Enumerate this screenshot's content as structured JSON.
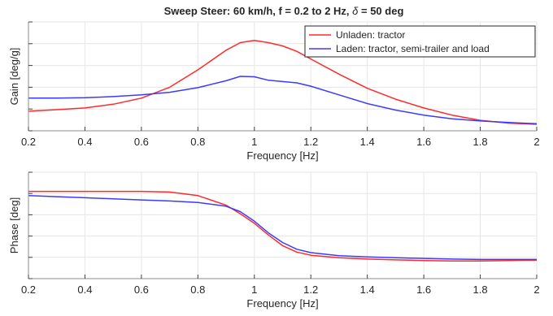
{
  "figure": {
    "title": "Sweep Steer: 60 km/h, f = 0.2 to 2 Hz, ",
    "title_delta": "δ",
    "title_tail": " = 50 deg"
  },
  "chart_data": [
    {
      "type": "line",
      "title": "Sweep Steer: 60 km/h, f = 0.2 to 2 Hz, δ = 50 deg",
      "xlabel": "Frequency [Hz]",
      "ylabel": "Gain [deg/g]",
      "xlim": [
        0.2,
        2
      ],
      "ylim": [
        0,
        5
      ],
      "xticks": [
        0.2,
        0.4,
        0.6,
        0.8,
        1,
        1.2,
        1.4,
        1.6,
        1.8,
        2
      ],
      "xtick_labels": [
        "0.2",
        "0.4",
        "0.6",
        "0.8",
        "1",
        "1.2",
        "1.4",
        "1.6",
        "1.8",
        "2"
      ],
      "grid": true,
      "legend": "top-right",
      "series": [
        {
          "name": "Unladen: tractor",
          "color": "#ff2a2a",
          "x": [
            0.2,
            0.3,
            0.4,
            0.5,
            0.6,
            0.7,
            0.8,
            0.9,
            0.95,
            1.0,
            1.05,
            1.1,
            1.15,
            1.2,
            1.3,
            1.4,
            1.5,
            1.6,
            1.7,
            1.8,
            1.9,
            2.0
          ],
          "y": [
            0.9,
            0.97,
            1.05,
            1.22,
            1.5,
            2.0,
            2.8,
            3.7,
            4.05,
            4.15,
            4.05,
            3.9,
            3.65,
            3.3,
            2.6,
            1.95,
            1.45,
            1.05,
            0.72,
            0.48,
            0.35,
            0.3
          ]
        },
        {
          "name": "Laden: tractor, semi-trailer and load",
          "color": "#3b3bff",
          "x": [
            0.2,
            0.3,
            0.4,
            0.5,
            0.6,
            0.7,
            0.8,
            0.9,
            0.95,
            1.0,
            1.05,
            1.1,
            1.15,
            1.2,
            1.3,
            1.4,
            1.5,
            1.6,
            1.7,
            1.8,
            1.9,
            2.0
          ],
          "y": [
            1.5,
            1.5,
            1.52,
            1.57,
            1.65,
            1.77,
            1.98,
            2.3,
            2.5,
            2.48,
            2.32,
            2.26,
            2.2,
            2.05,
            1.65,
            1.25,
            0.95,
            0.72,
            0.55,
            0.45,
            0.38,
            0.33
          ]
        }
      ]
    },
    {
      "type": "line",
      "xlabel": "Frequency [Hz]",
      "ylabel": "Phase [deg]",
      "xlim": [
        0.2,
        2
      ],
      "ylim": [
        -5,
        0
      ],
      "xticks": [
        0.2,
        0.4,
        0.6,
        0.8,
        1,
        1.2,
        1.4,
        1.6,
        1.8,
        2
      ],
      "xtick_labels": [
        "0.2",
        "0.4",
        "0.6",
        "0.8",
        "1",
        "1.2",
        "1.4",
        "1.6",
        "1.8",
        "2"
      ],
      "grid": true,
      "series": [
        {
          "color": "#ff2a2a",
          "x": [
            0.2,
            0.3,
            0.4,
            0.5,
            0.6,
            0.7,
            0.8,
            0.9,
            0.95,
            1.0,
            1.05,
            1.1,
            1.15,
            1.2,
            1.3,
            1.4,
            1.5,
            1.6,
            1.7,
            1.8,
            1.9,
            2.0
          ],
          "y": [
            -0.9,
            -0.9,
            -0.9,
            -0.9,
            -0.9,
            -0.93,
            -1.1,
            -1.55,
            -1.95,
            -2.4,
            -2.95,
            -3.45,
            -3.75,
            -3.9,
            -4.02,
            -4.08,
            -4.12,
            -4.15,
            -4.17,
            -4.17,
            -4.15,
            -4.13
          ]
        },
        {
          "color": "#3b3bff",
          "x": [
            0.2,
            0.3,
            0.4,
            0.5,
            0.6,
            0.7,
            0.8,
            0.9,
            0.95,
            1.0,
            1.05,
            1.1,
            1.15,
            1.2,
            1.3,
            1.4,
            1.5,
            1.6,
            1.7,
            1.8,
            1.9,
            2.0
          ],
          "y": [
            -1.1,
            -1.15,
            -1.2,
            -1.25,
            -1.3,
            -1.35,
            -1.42,
            -1.6,
            -1.85,
            -2.3,
            -2.85,
            -3.3,
            -3.62,
            -3.78,
            -3.92,
            -3.98,
            -4.02,
            -4.05,
            -4.08,
            -4.1,
            -4.1,
            -4.1
          ]
        }
      ]
    }
  ]
}
